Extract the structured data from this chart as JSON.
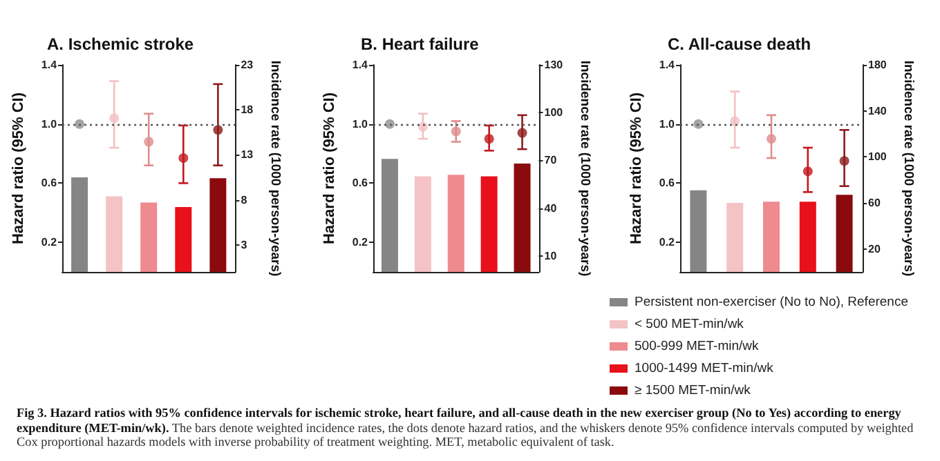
{
  "chart_data": [
    {
      "type": "bar",
      "title": "A. Ischemic stroke",
      "ylabel": "Hazard ratio (95% CI)",
      "y2label": "Incidence rate (1000 person-years)",
      "categories": [
        null,
        null,
        null,
        null,
        null
      ],
      "series": [
        {
          "axis": "y2",
          "colors": [
            "#858585",
            "#f4c3c5",
            "#ef8a8f",
            "#e8101a",
            "#8b0a0e"
          ],
          "values": [
            10.5,
            8.4,
            7.7,
            7.2,
            10.4
          ]
        },
        {
          "type": "scatter",
          "axis": "y",
          "colors": [
            "#8f8f8f",
            "#f2c0c2",
            "#e08c8c",
            "#c4161e",
            "#8c1a1a"
          ],
          "values": [
            1.0,
            1.04,
            0.88,
            0.77,
            0.96
          ],
          "errors": [
            null,
            [
              0.84,
              1.29
            ],
            [
              0.72,
              1.07
            ],
            [
              0.6,
              0.99
            ],
            [
              0.72,
              1.27
            ]
          ]
        }
      ],
      "ylim": [
        0,
        1.4
      ],
      "yticks": [
        {
          "value": 0.2,
          "label": "0.2"
        },
        {
          "value": 0.6,
          "label": "0.6"
        },
        {
          "value": 1.0,
          "label": "1.0"
        },
        {
          "value": 1.4,
          "label": "1.4"
        }
      ],
      "y2lim": [
        0,
        23
      ],
      "y2ticks": [
        3,
        8,
        13,
        18,
        23
      ],
      "ref_lines": [
        {
          "axis": "y",
          "value": 1.0,
          "line_style": "dotted",
          "color": "#555555"
        }
      ],
      "marker": "circle",
      "grid": false,
      "tick_labels": "y",
      "annotations": [
        "Fig 3.  Hazard ratios with 95% confidence intervals for ischemic stroke, heart failure, and all-cause death in the new exerciser group (No to Yes) according to energy expenditure (MET-min/wk).",
        "The bars denote weighted incidence rates, the dots denote hazard ratios, and the whiskers denote 95% confidence intervals computed by weighted Cox proportional hazards models with inverse probability of treatment weighting. MET, metabolic equivalent of task."
      ]
    },
    {
      "type": "bar",
      "title": "B. Heart failure",
      "ylabel": "Hazard ratio (95% CI)",
      "y2label": "Incidence rate (1000 person-years)",
      "categories": [
        null,
        null,
        null,
        null,
        null
      ],
      "series": [
        {
          "axis": "y2",
          "colors": [
            "#858585",
            "#f4c3c5",
            "#ef8a8f",
            "#e8101a",
            "#8b0a0e"
          ],
          "values": [
            71,
            60,
            61,
            60,
            68
          ]
        },
        {
          "type": "scatter",
          "axis": "y",
          "colors": [
            "#8f8f8f",
            "#f2c0c2",
            "#e08c8c",
            "#c4161e",
            "#8c1a1a"
          ],
          "values": [
            1.0,
            0.98,
            0.95,
            0.9,
            0.94
          ],
          "errors": [
            null,
            [
              0.9,
              1.07
            ],
            [
              0.88,
              1.02
            ],
            [
              0.82,
              0.99
            ],
            [
              0.83,
              1.06
            ]
          ]
        }
      ],
      "ylim": [
        0,
        1.4
      ],
      "yticks": [
        {
          "value": 0.2,
          "label": "0.2"
        },
        {
          "value": 0.6,
          "label": "0.6"
        },
        {
          "value": 1.0,
          "label": "1.0"
        },
        {
          "value": 1.4,
          "label": "1.4"
        }
      ],
      "y2lim": [
        0,
        130
      ],
      "y2ticks": [
        10,
        40,
        70,
        100,
        130
      ],
      "ref_lines": [
        {
          "axis": "y",
          "value": 1.0,
          "line_style": "dotted",
          "color": "#555555"
        }
      ],
      "marker": "circle",
      "grid": false,
      "tick_labels": "y"
    },
    {
      "type": "bar",
      "title": "C. All-cause death",
      "ylabel": "Hazard ratio (95% CI)",
      "y2label": "Incidence rate (1000 person-years)",
      "categories": [
        null,
        null,
        null,
        null,
        null
      ],
      "series": [
        {
          "name": "Persistent non-exerciser (No to No), Reference",
          "axis": "y2",
          "color": "#858585",
          "values": [
            71,
            null,
            null,
            null,
            null
          ]
        },
        {
          "name": "< 500 MET-min/wk",
          "axis": "y2",
          "color": "#f4c3c5",
          "values": [
            null,
            60,
            null,
            null,
            null
          ]
        },
        {
          "name": "500-999 MET-min/wk",
          "axis": "y2",
          "color": "#ef8a8f",
          "values": [
            null,
            null,
            61,
            null,
            null
          ]
        },
        {
          "name": "1000-1499 MET-min/wk",
          "axis": "y2",
          "color": "#e8101a",
          "values": [
            null,
            null,
            null,
            61,
            null
          ]
        },
        {
          "name": "≥ 1500 MET-min/wk",
          "axis": "y2",
          "color": "#8b0a0e",
          "values": [
            null,
            null,
            null,
            null,
            67
          ]
        },
        {
          "type": "scatter",
          "axis": "y",
          "colors": [
            "#8f8f8f",
            "#f2c0c2",
            "#e08c8c",
            "#c4161e",
            "#8c1a1a"
          ],
          "values": [
            1.0,
            1.02,
            0.9,
            0.68,
            0.75
          ],
          "errors": [
            null,
            [
              0.84,
              1.22
            ],
            [
              0.77,
              1.06
            ],
            [
              0.54,
              0.84
            ],
            [
              0.58,
              0.96
            ]
          ]
        }
      ],
      "ylim": [
        0,
        1.4
      ],
      "yticks": [
        {
          "value": 0.2,
          "label": "0.2"
        },
        {
          "value": 0.6,
          "label": "0.6"
        },
        {
          "value": 1.0,
          "label": "1.0"
        },
        {
          "value": 1.4,
          "label": "1.4"
        }
      ],
      "y2lim": [
        0,
        180
      ],
      "y2ticks": [
        20,
        60,
        100,
        140,
        180
      ],
      "ref_lines": [
        {
          "axis": "y",
          "value": 1.0,
          "line_style": "dotted",
          "color": "#555555"
        }
      ],
      "marker": "circle",
      "grid": false,
      "tick_labels": "y",
      "legend": "bottom"
    }
  ]
}
